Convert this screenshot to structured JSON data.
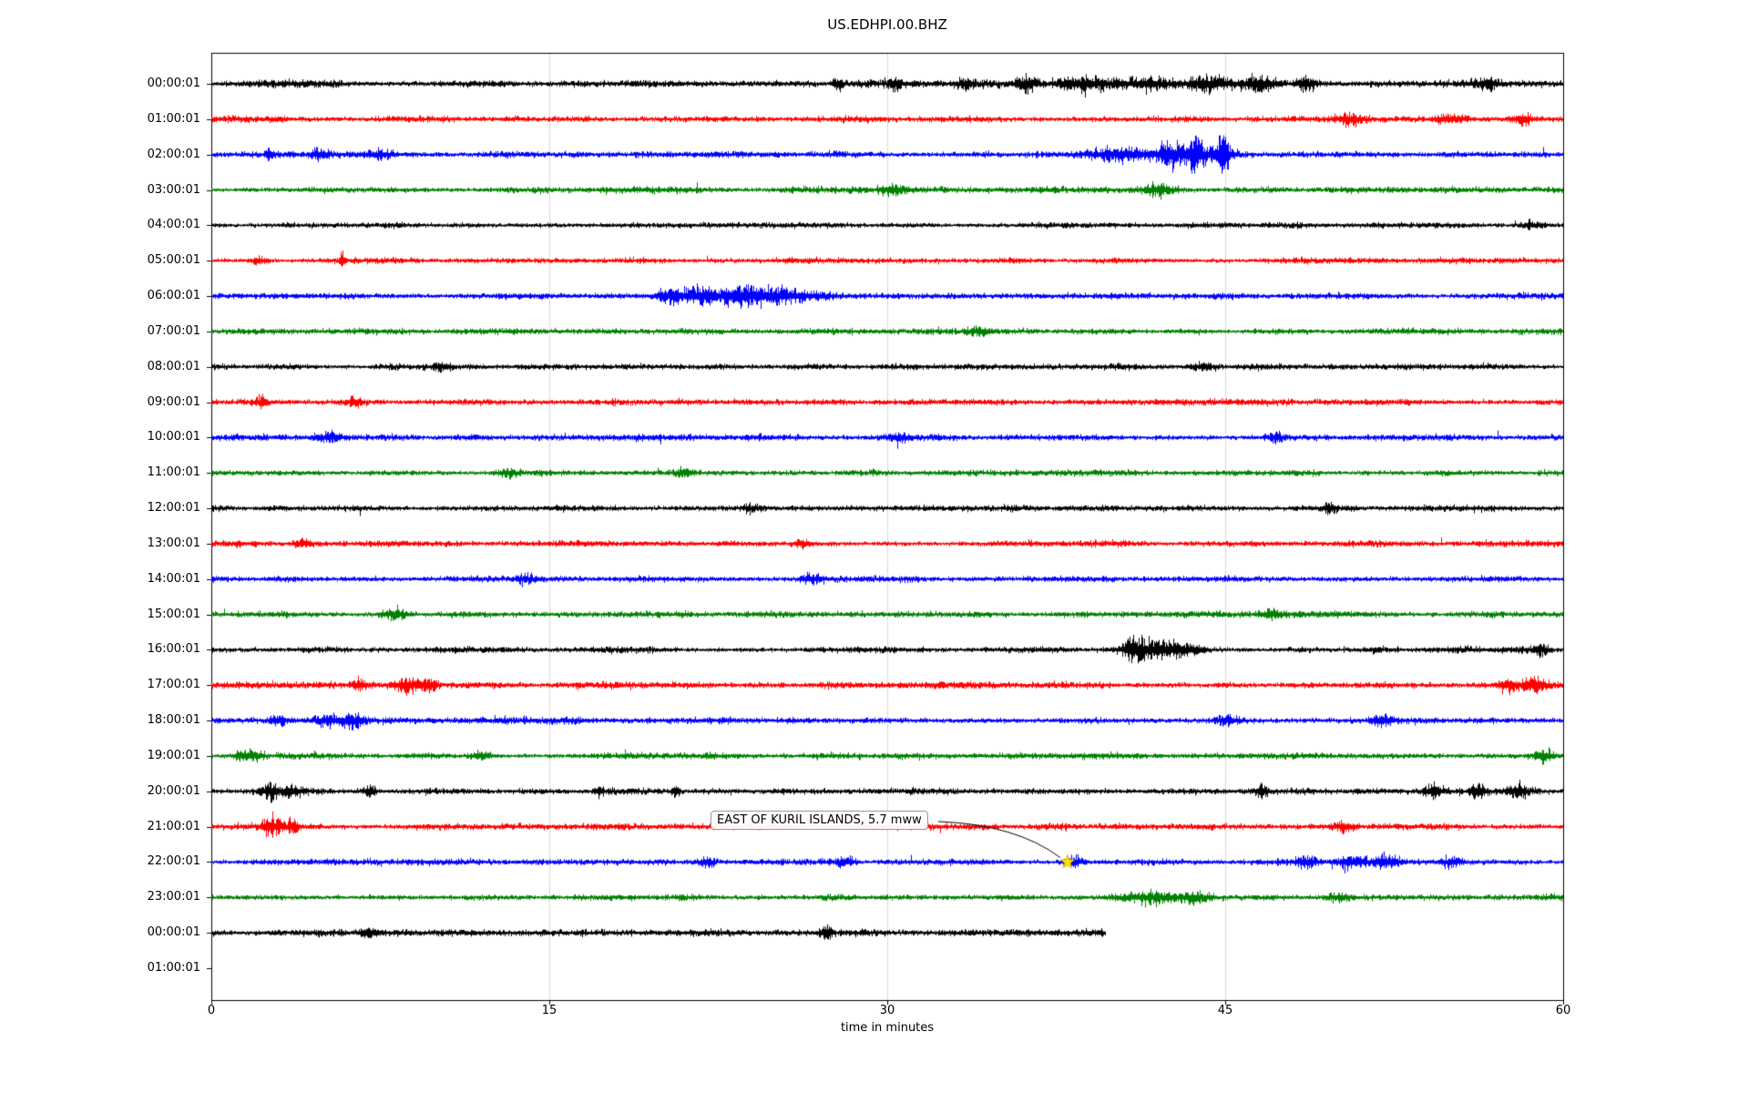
{
  "chart_data": {
    "type": "line",
    "subtype": "seismogram-dayplot",
    "title": "US.EDHPI.00.BHZ",
    "xlabel": "time in minutes",
    "x_range": [
      0,
      60
    ],
    "x_ticks": [
      0,
      15,
      30,
      45,
      60
    ],
    "grid_color": "#d8d8d8",
    "border_color": "#000000",
    "background": "#ffffff",
    "annotation": {
      "text": "EAST OF KURIL ISLANDS, 5.7 mww",
      "row_label": "22:00:01",
      "row_index": 22,
      "minute": 38,
      "marker": "star",
      "marker_color": "#ffe000"
    },
    "rows": [
      {
        "label": "00:00:01",
        "color": "#000000",
        "duration": 60,
        "base": 1.15,
        "bursts": [
          {
            "t": 27.8,
            "a": 2.2,
            "w": 0.15
          },
          {
            "t": 30.3,
            "a": 1.6,
            "w": 0.2
          },
          {
            "t": 33.5,
            "a": 1.5,
            "w": 0.3
          },
          {
            "t": 36.2,
            "a": 2.6,
            "w": 0.3
          },
          {
            "t": 38.8,
            "a": 2.2,
            "w": 0.9
          },
          {
            "t": 41.5,
            "a": 1.8,
            "w": 0.8
          },
          {
            "t": 44.2,
            "a": 2.4,
            "w": 0.7
          },
          {
            "t": 46.5,
            "a": 1.9,
            "w": 0.5
          },
          {
            "t": 48.6,
            "a": 2.0,
            "w": 0.3
          },
          {
            "t": 56.5,
            "a": 1.5,
            "w": 0.4
          }
        ]
      },
      {
        "label": "01:00:01",
        "color": "#ff0000",
        "duration": 60,
        "base": 1.0,
        "bursts": [
          {
            "t": 50.5,
            "a": 1.3,
            "w": 0.4
          },
          {
            "t": 55.0,
            "a": 1.4,
            "w": 0.5
          },
          {
            "t": 58.2,
            "a": 1.5,
            "w": 0.3
          }
        ]
      },
      {
        "label": "02:00:01",
        "color": "#0000ff",
        "duration": 60,
        "base": 1.0,
        "bursts": [
          {
            "t": 2.6,
            "a": 2.6,
            "w": 0.12
          },
          {
            "t": 4.8,
            "a": 1.5,
            "w": 0.3
          },
          {
            "t": 7.5,
            "a": 1.3,
            "w": 0.4
          },
          {
            "t": 40.6,
            "a": 2.0,
            "w": 1.0
          },
          {
            "t": 42.6,
            "a": 3.5,
            "w": 0.35
          },
          {
            "t": 43.6,
            "a": 5.5,
            "w": 0.22
          },
          {
            "t": 44.9,
            "a": 6.5,
            "w": 0.16
          },
          {
            "t": 44.2,
            "a": 2.5,
            "w": 0.9
          }
        ]
      },
      {
        "label": "03:00:01",
        "color": "#008000",
        "duration": 60,
        "base": 1.0,
        "bursts": [
          {
            "t": 30.2,
            "a": 1.3,
            "w": 0.4
          },
          {
            "t": 42.0,
            "a": 2.0,
            "w": 0.5
          }
        ]
      },
      {
        "label": "04:00:01",
        "color": "#000000",
        "duration": 60,
        "base": 0.95,
        "bursts": [
          {
            "t": 58.6,
            "a": 1.4,
            "w": 0.3
          }
        ]
      },
      {
        "label": "05:00:01",
        "color": "#ff0000",
        "duration": 60,
        "base": 0.95,
        "bursts": [
          {
            "t": 5.8,
            "a": 4.5,
            "w": 0.06
          },
          {
            "t": 2.1,
            "a": 1.4,
            "w": 0.2
          }
        ]
      },
      {
        "label": "06:00:01",
        "color": "#0000ff",
        "duration": 60,
        "base": 1.0,
        "bursts": [
          {
            "t": 20.4,
            "a": 2.6,
            "w": 0.5
          },
          {
            "t": 21.8,
            "a": 3.2,
            "w": 0.5
          },
          {
            "t": 23.4,
            "a": 3.8,
            "w": 0.45
          },
          {
            "t": 24.6,
            "a": 2.6,
            "w": 0.5
          },
          {
            "t": 26.0,
            "a": 1.7,
            "w": 0.8
          }
        ]
      },
      {
        "label": "07:00:01",
        "color": "#008000",
        "duration": 60,
        "base": 0.95,
        "bursts": [
          {
            "t": 34.0,
            "a": 1.2,
            "w": 0.4
          }
        ]
      },
      {
        "label": "08:00:01",
        "color": "#000000",
        "duration": 60,
        "base": 1.0,
        "bursts": [
          {
            "t": 10.2,
            "a": 1.3,
            "w": 0.3
          },
          {
            "t": 44.0,
            "a": 1.2,
            "w": 0.4
          }
        ]
      },
      {
        "label": "09:00:01",
        "color": "#ff0000",
        "duration": 60,
        "base": 1.0,
        "bursts": [
          {
            "t": 2.2,
            "a": 1.4,
            "w": 0.2
          },
          {
            "t": 6.4,
            "a": 1.3,
            "w": 0.25
          }
        ]
      },
      {
        "label": "10:00:01",
        "color": "#0000ff",
        "duration": 60,
        "base": 1.0,
        "bursts": [
          {
            "t": 5.2,
            "a": 1.5,
            "w": 0.4
          },
          {
            "t": 30.5,
            "a": 1.3,
            "w": 0.4
          },
          {
            "t": 47.2,
            "a": 1.5,
            "w": 0.3
          }
        ]
      },
      {
        "label": "11:00:01",
        "color": "#008000",
        "duration": 60,
        "base": 0.95,
        "bursts": [
          {
            "t": 13.2,
            "a": 1.5,
            "w": 0.3
          },
          {
            "t": 21.0,
            "a": 1.3,
            "w": 0.3
          }
        ]
      },
      {
        "label": "12:00:01",
        "color": "#000000",
        "duration": 60,
        "base": 0.95,
        "bursts": [
          {
            "t": 49.6,
            "a": 1.7,
            "w": 0.15
          },
          {
            "t": 24.0,
            "a": 1.2,
            "w": 0.3
          }
        ]
      },
      {
        "label": "13:00:01",
        "color": "#ff0000",
        "duration": 60,
        "base": 1.0,
        "bursts": [
          {
            "t": 4.0,
            "a": 1.5,
            "w": 0.35
          },
          {
            "t": 26.2,
            "a": 1.4,
            "w": 0.3
          }
        ]
      },
      {
        "label": "14:00:01",
        "color": "#0000ff",
        "duration": 60,
        "base": 1.0,
        "bursts": [
          {
            "t": 26.6,
            "a": 1.5,
            "w": 0.35
          },
          {
            "t": 14.0,
            "a": 1.3,
            "w": 0.3
          }
        ]
      },
      {
        "label": "15:00:01",
        "color": "#008000",
        "duration": 60,
        "base": 1.0,
        "bursts": [
          {
            "t": 8.2,
            "a": 1.4,
            "w": 0.4
          },
          {
            "t": 47.0,
            "a": 1.3,
            "w": 0.3
          }
        ]
      },
      {
        "label": "16:00:01",
        "color": "#000000",
        "duration": 60,
        "base": 1.0,
        "bursts": [
          {
            "t": 41.0,
            "a": 3.8,
            "w": 0.4
          },
          {
            "t": 42.1,
            "a": 3.0,
            "w": 0.5
          },
          {
            "t": 43.3,
            "a": 2.2,
            "w": 0.5
          },
          {
            "t": 59.0,
            "a": 1.9,
            "w": 0.25
          }
        ]
      },
      {
        "label": "17:00:01",
        "color": "#ff0000",
        "duration": 60,
        "base": 1.05,
        "bursts": [
          {
            "t": 6.6,
            "a": 1.8,
            "w": 0.3
          },
          {
            "t": 8.6,
            "a": 2.4,
            "w": 0.35
          },
          {
            "t": 9.6,
            "a": 2.8,
            "w": 0.3
          },
          {
            "t": 57.6,
            "a": 2.3,
            "w": 0.35
          },
          {
            "t": 58.8,
            "a": 2.8,
            "w": 0.3
          }
        ]
      },
      {
        "label": "18:00:01",
        "color": "#0000ff",
        "duration": 60,
        "base": 1.05,
        "bursts": [
          {
            "t": 3.0,
            "a": 1.6,
            "w": 0.3
          },
          {
            "t": 5.2,
            "a": 2.0,
            "w": 0.35
          },
          {
            "t": 6.2,
            "a": 2.1,
            "w": 0.3
          },
          {
            "t": 45.0,
            "a": 1.6,
            "w": 0.4
          },
          {
            "t": 52.0,
            "a": 1.5,
            "w": 0.3
          }
        ]
      },
      {
        "label": "19:00:01",
        "color": "#008000",
        "duration": 60,
        "base": 1.05,
        "bursts": [
          {
            "t": 1.6,
            "a": 2.2,
            "w": 0.4
          },
          {
            "t": 12.0,
            "a": 1.5,
            "w": 0.3
          },
          {
            "t": 59.2,
            "a": 2.2,
            "w": 0.3
          }
        ]
      },
      {
        "label": "20:00:01",
        "color": "#000000",
        "duration": 60,
        "base": 1.0,
        "bursts": [
          {
            "t": 2.6,
            "a": 2.6,
            "w": 0.3
          },
          {
            "t": 3.6,
            "a": 2.0,
            "w": 0.3
          },
          {
            "t": 7.0,
            "a": 2.4,
            "w": 0.18
          },
          {
            "t": 17.2,
            "a": 1.7,
            "w": 0.15
          },
          {
            "t": 20.6,
            "a": 1.8,
            "w": 0.12
          },
          {
            "t": 46.6,
            "a": 2.1,
            "w": 0.25
          },
          {
            "t": 54.2,
            "a": 1.9,
            "w": 0.3
          },
          {
            "t": 56.2,
            "a": 2.7,
            "w": 0.22
          },
          {
            "t": 58.0,
            "a": 2.1,
            "w": 0.3
          }
        ]
      },
      {
        "label": "21:00:01",
        "color": "#ff0000",
        "duration": 60,
        "base": 1.0,
        "bursts": [
          {
            "t": 2.7,
            "a": 3.2,
            "w": 0.3
          },
          {
            "t": 3.6,
            "a": 2.2,
            "w": 0.25
          },
          {
            "t": 50.2,
            "a": 1.4,
            "w": 0.3
          }
        ]
      },
      {
        "label": "22:00:01",
        "color": "#0000ff",
        "duration": 60,
        "base": 1.0,
        "bursts": [
          {
            "t": 22.0,
            "a": 1.7,
            "w": 0.25
          },
          {
            "t": 28.2,
            "a": 1.5,
            "w": 0.25
          },
          {
            "t": 38.3,
            "a": 1.8,
            "w": 0.3
          },
          {
            "t": 48.6,
            "a": 1.9,
            "w": 0.4
          },
          {
            "t": 50.6,
            "a": 2.4,
            "w": 0.5
          },
          {
            "t": 52.2,
            "a": 2.1,
            "w": 0.4
          },
          {
            "t": 55.0,
            "a": 1.5,
            "w": 0.3
          }
        ]
      },
      {
        "label": "23:00:01",
        "color": "#008000",
        "duration": 60,
        "base": 1.0,
        "bursts": [
          {
            "t": 41.8,
            "a": 1.9,
            "w": 0.7
          },
          {
            "t": 43.6,
            "a": 1.6,
            "w": 0.5
          },
          {
            "t": 50.0,
            "a": 1.3,
            "w": 0.4
          }
        ]
      },
      {
        "label": "00:00:01",
        "color": "#000000",
        "duration": 39.7,
        "base": 1.1,
        "bursts": [
          {
            "t": 7.0,
            "a": 1.4,
            "w": 0.3
          },
          {
            "t": 27.3,
            "a": 2.4,
            "w": 0.2
          }
        ]
      },
      {
        "label": "01:00:01",
        "color": "#ff0000",
        "duration": 0,
        "base": 0,
        "bursts": []
      }
    ]
  }
}
